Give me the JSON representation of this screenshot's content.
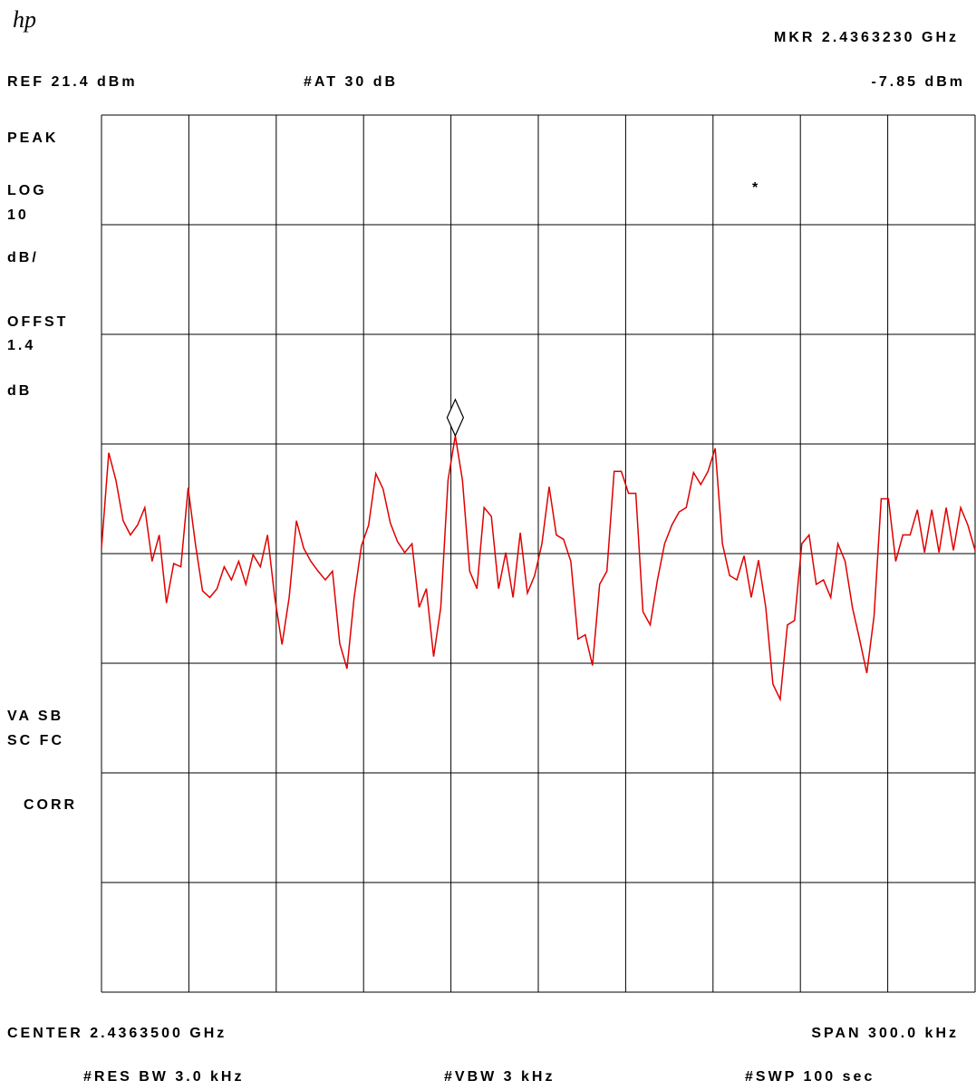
{
  "chart_data": {
    "type": "line",
    "logo": "hp",
    "marker_label": "MKR 2.4363230 GHz",
    "ref_label": "REF 21.4 dBm",
    "atten_label": "#AT 30 dB",
    "marker_value_label": "-7.85 dBm",
    "side_labels": [
      "PEAK",
      "LOG",
      "10",
      "dB/",
      "OFFST",
      "1.4",
      "dB",
      "VA SB",
      "SC FC",
      "CORR"
    ],
    "star": "*",
    "center_label": "CENTER 2.4363500 GHz",
    "span_label": "SPAN 300.0 kHz",
    "res_bw_label": "#RES BW 3.0 kHz",
    "vbw_label": "#VBW 3 kHz",
    "sweep_label": "#SWP 100  sec",
    "ylim": [
      -58.6,
      21.4
    ],
    "color": "#e00000",
    "values": [
      -18.1,
      -9.4,
      -11.9,
      -15.6,
      -16.9,
      -16.0,
      -14.4,
      -19.3,
      -16.9,
      -23.1,
      -19.5,
      -19.8,
      -12.6,
      -17.7,
      -22.0,
      -22.6,
      -21.8,
      -19.8,
      -21.0,
      -19.3,
      -21.4,
      -18.7,
      -19.8,
      -16.9,
      -22.6,
      -26.9,
      -22.6,
      -15.6,
      -18.1,
      -19.3,
      -20.2,
      -21.0,
      -20.2,
      -26.8,
      -29.1,
      -22.6,
      -17.9,
      -16.0,
      -11.3,
      -12.7,
      -15.8,
      -17.5,
      -18.5,
      -17.7,
      -23.5,
      -21.8,
      -28.0,
      -23.5,
      -11.9,
      -7.85,
      -11.9,
      -20.2,
      -21.8,
      -14.4,
      -15.2,
      -21.8,
      -18.5,
      -22.6,
      -16.7,
      -22.2,
      -20.6,
      -17.7,
      -12.5,
      -16.9,
      -17.3,
      -19.3,
      -26.4,
      -26.0,
      -28.8,
      -21.4,
      -20.2,
      -11.1,
      -11.1,
      -13.1,
      -13.1,
      -23.9,
      -25.1,
      -21.0,
      -17.7,
      -16.0,
      -14.8,
      -14.4,
      -11.2,
      -12.3,
      -11.1,
      -9.0,
      -17.7,
      -20.6,
      -21.0,
      -18.8,
      -22.6,
      -19.2,
      -23.5,
      -30.5,
      -31.9,
      -25.1,
      -24.7,
      -17.7,
      -16.9,
      -21.4,
      -21.0,
      -22.6,
      -17.7,
      -19.3,
      -23.5,
      -26.4,
      -29.5,
      -24.3,
      -13.6,
      -13.6,
      -19.3,
      -16.9,
      -16.9,
      -14.6,
      -18.5,
      -14.6,
      -18.5,
      -14.4,
      -18.3,
      -14.4,
      -16.0,
      -18.3
    ]
  }
}
